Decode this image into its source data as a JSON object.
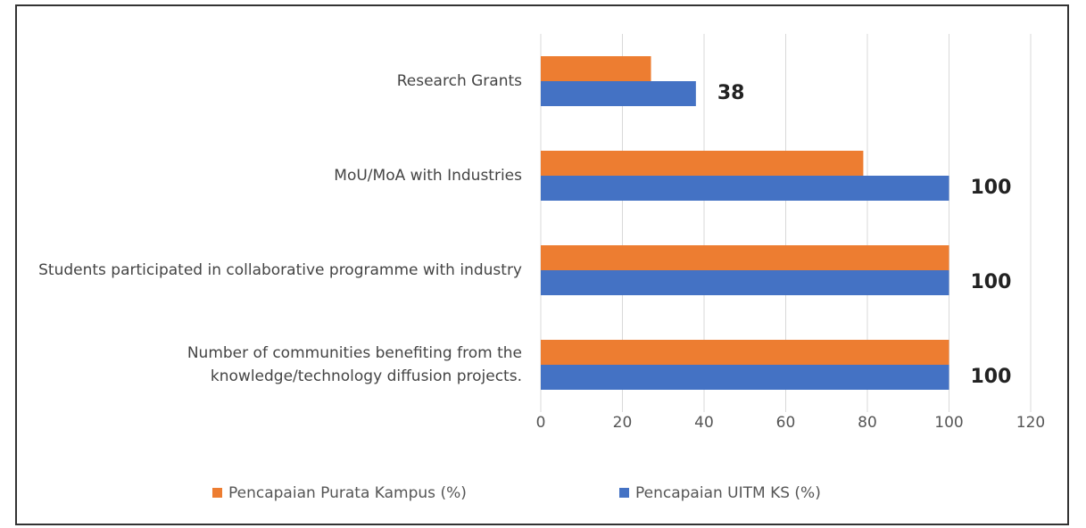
{
  "chart_data": {
    "type": "hbar",
    "categories": [
      "Research Grants",
      "MoU/MoA with Industries",
      "Students participated in collaborative programme with industry",
      "Number of communities benefiting from the knowledge/technology diffusion projects."
    ],
    "series": [
      {
        "name": "Pencapaian Purata Kampus (%)",
        "color": "#ed7d31",
        "values": [
          27,
          79,
          100,
          100
        ]
      },
      {
        "name": "Pencapaian UITM KS (%)",
        "color": "#4472c4",
        "values": [
          38,
          100,
          100,
          100
        ],
        "data_labels": true
      }
    ],
    "xlim": [
      0,
      120
    ],
    "xticks": [
      0,
      20,
      40,
      60,
      80,
      100,
      120
    ],
    "grid": true,
    "legend": "bottom"
  }
}
